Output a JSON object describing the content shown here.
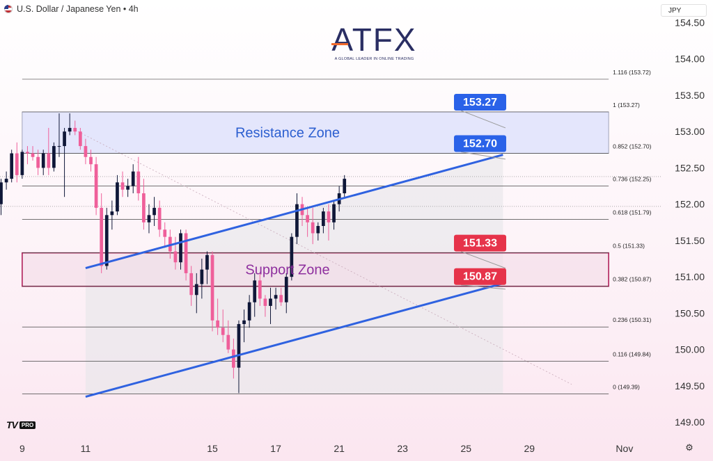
{
  "header": {
    "title": "U.S. Dollar / Japanese Yen • 4h",
    "flag_icon": "us-jp-flag-icon"
  },
  "currency_button": {
    "label": "JPY"
  },
  "brand": {
    "name": "ATFX",
    "tagline": "A GLOBAL LEADER IN ONLINE TRADING"
  },
  "platform": {
    "mark": "TV",
    "badge": "PRO"
  },
  "colors": {
    "up": "#0f1738",
    "down": "#ef5f9a",
    "channel": "#2f62e0",
    "resistance_fill": "#dfe3fb",
    "support_border": "#b0205a",
    "blue_label": "#2a62e8",
    "red_label": "#e6334a"
  },
  "chart_data": {
    "type": "candlestick",
    "symbol": "USDJPY",
    "timeframe": "4h",
    "ylim": [
      148.8,
      154.6
    ],
    "y_ticks": [
      "149.00",
      "149.50",
      "150.00",
      "150.50",
      "151.00",
      "151.50",
      "152.00",
      "152.50",
      "153.00",
      "153.50",
      "154.00",
      "154.50"
    ],
    "x_ticks": [
      {
        "label": "9",
        "t": -12
      },
      {
        "label": "11",
        "t": 0
      },
      {
        "label": "15",
        "t": 24
      },
      {
        "label": "17",
        "t": 36
      },
      {
        "label": "21",
        "t": 48
      },
      {
        "label": "23",
        "t": 60
      },
      {
        "label": "25",
        "t": 72
      },
      {
        "label": "29",
        "t": 84
      },
      {
        "label": "Nov",
        "t": 102
      }
    ],
    "xlim": [
      -16.2,
      109
    ],
    "candles": [
      [
        -16,
        152.0,
        152.35,
        151.85,
        152.3
      ],
      [
        -15,
        152.3,
        152.45,
        152.2,
        152.35
      ],
      [
        -14,
        152.35,
        152.75,
        152.3,
        152.7
      ],
      [
        -13,
        152.7,
        152.85,
        152.3,
        152.4
      ],
      [
        -12,
        152.4,
        152.75,
        152.35,
        152.72
      ],
      [
        -11,
        152.72,
        152.8,
        152.55,
        152.7
      ],
      [
        -10,
        152.7,
        152.8,
        152.6,
        152.65
      ],
      [
        -9,
        152.65,
        152.75,
        152.4,
        152.5
      ],
      [
        -8,
        152.5,
        152.75,
        152.4,
        152.7
      ],
      [
        -7,
        152.7,
        153.05,
        152.4,
        152.5
      ],
      [
        -6,
        152.5,
        152.85,
        152.45,
        152.8
      ],
      [
        -5,
        152.8,
        153.25,
        152.65,
        152.8
      ],
      [
        -4,
        152.8,
        153.05,
        152.1,
        153.0
      ],
      [
        -3,
        153.0,
        153.25,
        152.95,
        153.05
      ],
      [
        -2,
        153.05,
        153.15,
        152.95,
        153.0
      ],
      [
        -1,
        153.0,
        153.05,
        152.75,
        152.8
      ],
      [
        0,
        152.8,
        152.9,
        152.55,
        152.65
      ],
      [
        1,
        152.65,
        152.75,
        152.45,
        152.55
      ],
      [
        2,
        152.55,
        152.65,
        151.85,
        151.95
      ],
      [
        3,
        151.95,
        152.15,
        151.05,
        151.15
      ],
      [
        4,
        151.15,
        151.95,
        151.1,
        151.85
      ],
      [
        5,
        151.85,
        152.05,
        151.65,
        151.9
      ],
      [
        6,
        151.9,
        152.4,
        151.85,
        152.3
      ],
      [
        7,
        152.3,
        152.45,
        152.1,
        152.2
      ],
      [
        8,
        152.2,
        152.35,
        152.1,
        152.25
      ],
      [
        9,
        152.25,
        152.55,
        152.15,
        152.45
      ],
      [
        10,
        152.45,
        152.65,
        152.05,
        152.15
      ],
      [
        11,
        152.15,
        152.35,
        151.65,
        151.75
      ],
      [
        12,
        151.75,
        152.0,
        151.6,
        151.85
      ],
      [
        13,
        151.85,
        152.1,
        151.7,
        151.95
      ],
      [
        14,
        151.95,
        152.05,
        151.55,
        151.65
      ],
      [
        15,
        151.65,
        151.75,
        151.4,
        151.55
      ],
      [
        16,
        151.55,
        151.65,
        151.25,
        151.35
      ],
      [
        17,
        151.35,
        151.55,
        151.1,
        151.2
      ],
      [
        18,
        151.2,
        151.65,
        151.1,
        151.6
      ],
      [
        19,
        151.6,
        151.65,
        150.95,
        151.05
      ],
      [
        20,
        151.05,
        151.15,
        150.6,
        150.75
      ],
      [
        21,
        150.75,
        151.05,
        150.5,
        150.9
      ],
      [
        22,
        150.9,
        151.25,
        150.7,
        151.1
      ],
      [
        23,
        151.1,
        151.35,
        150.9,
        151.3
      ],
      [
        24,
        151.3,
        151.35,
        150.25,
        150.4
      ],
      [
        25,
        150.4,
        150.7,
        150.2,
        150.3
      ],
      [
        26,
        150.3,
        150.55,
        150.1,
        150.2
      ],
      [
        27,
        150.2,
        150.4,
        149.95,
        150.0
      ],
      [
        28,
        150.0,
        150.15,
        149.6,
        149.75
      ],
      [
        29,
        149.75,
        150.4,
        149.4,
        150.35
      ],
      [
        30,
        150.35,
        150.55,
        150.1,
        150.4
      ],
      [
        31,
        150.4,
        150.75,
        150.3,
        150.65
      ],
      [
        32,
        150.65,
        151.05,
        150.45,
        150.95
      ],
      [
        33,
        150.95,
        151.05,
        150.6,
        150.7
      ],
      [
        34,
        150.7,
        150.75,
        150.45,
        150.6
      ],
      [
        35,
        150.6,
        150.85,
        150.35,
        150.7
      ],
      [
        36,
        150.7,
        150.85,
        150.55,
        150.75
      ],
      [
        37,
        150.75,
        150.85,
        150.6,
        150.65
      ],
      [
        38,
        150.65,
        151.05,
        150.5,
        151.0
      ],
      [
        39,
        151.0,
        151.6,
        150.95,
        151.55
      ],
      [
        40,
        151.55,
        152.15,
        151.45,
        152.0
      ],
      [
        41,
        152.0,
        152.1,
        151.7,
        151.85
      ],
      [
        42,
        151.85,
        151.95,
        151.55,
        151.75
      ],
      [
        43,
        151.75,
        151.95,
        151.45,
        151.6
      ],
      [
        44,
        151.6,
        151.75,
        151.5,
        151.7
      ],
      [
        45,
        151.7,
        151.95,
        151.6,
        151.9
      ],
      [
        46,
        151.9,
        152.0,
        151.5,
        151.75
      ],
      [
        47,
        151.75,
        152.05,
        151.65,
        152.0
      ],
      [
        48,
        152.0,
        152.25,
        151.9,
        152.15
      ],
      [
        49,
        152.15,
        152.4,
        152.1,
        152.35
      ]
    ],
    "resistance_zone": {
      "label": "Resistance Zone",
      "top": 153.27,
      "bottom": 152.7,
      "t_from": -12,
      "t_to": 99
    },
    "support_zone": {
      "label": "Support Zone",
      "top": 151.33,
      "bottom": 150.87,
      "t_from": -12,
      "t_to": 99
    },
    "channel": {
      "upper": {
        "t1": 0,
        "p1": 151.12,
        "t2": 79,
        "p2": 152.68
      },
      "lower": {
        "t1": 0,
        "p1": 149.35,
        "t2": 79,
        "p2": 150.91
      }
    },
    "projection_shading": {
      "t_from": 0,
      "t_to": 79
    },
    "dotted_trend": {
      "t1": -2,
      "p1": 153.02,
      "t2": 92,
      "p2": 149.52
    },
    "fibonacci": {
      "t_from": -12,
      "t_to": 99,
      "levels": [
        {
          "ratio": "1.116",
          "price": 153.72,
          "label": "1.116 (153.72)"
        },
        {
          "ratio": "1",
          "price": 153.27,
          "label": "1 (153.27)"
        },
        {
          "ratio": "0.852",
          "price": 152.7,
          "label": "0.852 (152.70)"
        },
        {
          "ratio": "0.736",
          "price": 152.25,
          "label": "0.736 (152.25)"
        },
        {
          "ratio": "0.618",
          "price": 151.79,
          "label": "0.618 (151.79)"
        },
        {
          "ratio": "0.5",
          "price": 151.33,
          "label": "0.5 (151.33)"
        },
        {
          "ratio": "0.382",
          "price": 150.87,
          "label": "0.382 (150.87)"
        },
        {
          "ratio": "0.236",
          "price": 150.31,
          "label": "0.236 (150.31)"
        },
        {
          "ratio": "0.116",
          "price": 149.84,
          "label": "0.116 (149.84)"
        },
        {
          "ratio": "0",
          "price": 149.39,
          "label": "0 (149.39)"
        }
      ]
    },
    "callouts": [
      {
        "text": "153.27",
        "price": 153.27,
        "color": "blue",
        "anchor_t": 80,
        "anchor_p": 153.05
      },
      {
        "text": "152.70",
        "price": 152.7,
        "color": "blue",
        "anchor_t": 80,
        "anchor_p": 152.62
      },
      {
        "text": "151.33",
        "price": 151.33,
        "color": "red",
        "anchor_t": 80,
        "anchor_p": 151.12
      },
      {
        "text": "150.87",
        "price": 150.87,
        "color": "red",
        "anchor_t": 80,
        "anchor_p": 150.83
      }
    ],
    "price_reference_lines": [
      152.38,
      151.97
    ]
  }
}
